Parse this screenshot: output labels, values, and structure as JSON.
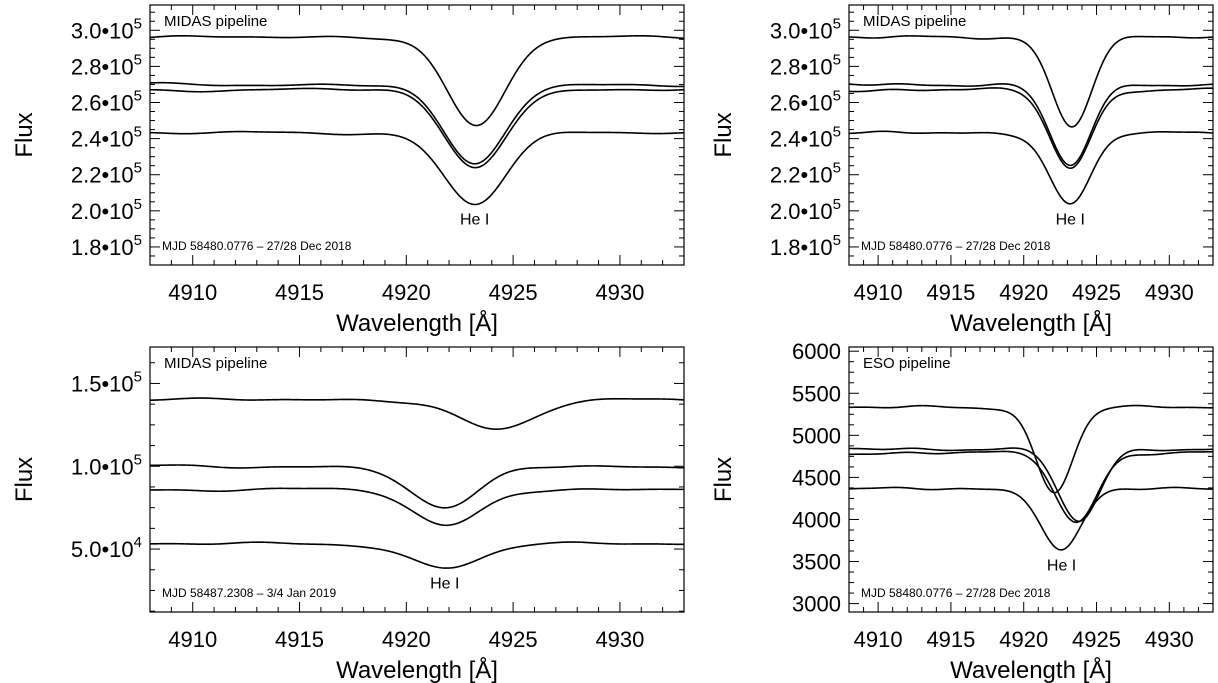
{
  "chart_data": [
    {
      "type": "line",
      "pipeline_label": "MIDAS pipeline",
      "date_label": "MJD 58480.0776 – 27/28 Dec 2018",
      "line_label": "He I",
      "line_label_x": 4923.2,
      "xlabel": "Wavelength [Å]",
      "ylabel": "Flux",
      "xlim": [
        4908,
        4933
      ],
      "ylim": [
        170000,
        314000
      ],
      "xticks": [
        4910,
        4915,
        4920,
        4925,
        4930
      ],
      "yticks": [
        {
          "value": 180000,
          "mant": "1.8",
          "exp": "5"
        },
        {
          "value": 200000,
          "mant": "2.0",
          "exp": "5"
        },
        {
          "value": 220000,
          "mant": "2.2",
          "exp": "5"
        },
        {
          "value": 240000,
          "mant": "2.4",
          "exp": "5"
        },
        {
          "value": 260000,
          "mant": "2.6",
          "exp": "5"
        },
        {
          "value": 280000,
          "mant": "2.8",
          "exp": "5"
        },
        {
          "value": 300000,
          "mant": "3.0",
          "exp": "5"
        }
      ],
      "series": [
        {
          "continuum": 296000,
          "depth": 49000,
          "center": 4923.3,
          "width": 1.9
        },
        {
          "continuum": 270000,
          "depth": 45000,
          "center": 4923.2,
          "width": 2.0
        },
        {
          "continuum": 267000,
          "depth": 43000,
          "center": 4923.2,
          "width": 2.0
        },
        {
          "continuum": 243000,
          "depth": 39000,
          "center": 4923.2,
          "width": 2.0
        }
      ]
    },
    {
      "type": "line",
      "pipeline_label": "MIDAS pipeline",
      "date_label": "MJD 58480.0776 – 27/28 Dec 2018",
      "line_label": "He I",
      "line_label_x": 4923.2,
      "xlabel": "Wavelength [Å]",
      "ylabel": "Flux",
      "xlim": [
        4908,
        4933
      ],
      "ylim": [
        170000,
        314000
      ],
      "xticks": [
        4910,
        4915,
        4920,
        4925,
        4930
      ],
      "yticks": [
        {
          "value": 180000,
          "mant": "1.8",
          "exp": "5"
        },
        {
          "value": 200000,
          "mant": "2.0",
          "exp": "5"
        },
        {
          "value": 220000,
          "mant": "2.2",
          "exp": "5"
        },
        {
          "value": 240000,
          "mant": "2.4",
          "exp": "5"
        },
        {
          "value": 260000,
          "mant": "2.6",
          "exp": "5"
        },
        {
          "value": 280000,
          "mant": "2.8",
          "exp": "5"
        },
        {
          "value": 300000,
          "mant": "3.0",
          "exp": "5"
        }
      ],
      "series": [
        {
          "continuum": 296000,
          "depth": 49000,
          "center": 4923.3,
          "width": 1.9
        },
        {
          "continuum": 270000,
          "depth": 45000,
          "center": 4923.2,
          "width": 2.0
        },
        {
          "continuum": 267000,
          "depth": 43000,
          "center": 4923.2,
          "width": 2.0
        },
        {
          "continuum": 243000,
          "depth": 39000,
          "center": 4923.2,
          "width": 2.0
        }
      ]
    },
    {
      "type": "line",
      "pipeline_label": "MIDAS pipeline",
      "date_label": "MJD 58487.2308 – 3/4 Jan 2019",
      "line_label": "He I",
      "line_label_x": 4921.8,
      "xlabel": "Wavelength [Å]",
      "ylabel": "Flux",
      "xlim": [
        4908,
        4933
      ],
      "ylim": [
        12000,
        172000
      ],
      "xticks": [
        4910,
        4915,
        4920,
        4925,
        4930
      ],
      "yticks": [
        {
          "value": 50000,
          "mant": "5.0",
          "exp": "4"
        },
        {
          "value": 100000,
          "mant": "1.0",
          "exp": "5"
        },
        {
          "value": 150000,
          "mant": "1.5",
          "exp": "5"
        }
      ],
      "series": [
        {
          "continuum": 140000,
          "depth": 18000,
          "center": 4924.3,
          "width": 2.4
        },
        {
          "continuum": 100000,
          "depth": 26000,
          "center": 4921.8,
          "width": 2.2
        },
        {
          "continuum": 86000,
          "depth": 22000,
          "center": 4921.8,
          "width": 2.2
        },
        {
          "continuum": 53000,
          "depth": 14000,
          "center": 4921.8,
          "width": 2.3
        }
      ]
    },
    {
      "type": "line",
      "pipeline_label": "ESO pipeline",
      "date_label": "MJD 58480.0776 – 27/28 Dec 2018",
      "line_label": "He I",
      "line_label_x": 4922.6,
      "xlabel": "Wavelength [Å]",
      "ylabel": "Flux",
      "xlim": [
        4908,
        4933
      ],
      "ylim": [
        2900,
        6050
      ],
      "xticks": [
        4910,
        4915,
        4920,
        4925,
        4930
      ],
      "yticks": [
        {
          "value": 3000,
          "label": "3000"
        },
        {
          "value": 3500,
          "label": "3500"
        },
        {
          "value": 4000,
          "label": "4000"
        },
        {
          "value": 4500,
          "label": "4500"
        },
        {
          "value": 5000,
          "label": "5000"
        },
        {
          "value": 5500,
          "label": "5500"
        },
        {
          "value": 6000,
          "label": "6000"
        }
      ],
      "series": [
        {
          "continuum": 5330,
          "depth": 1000,
          "center": 4922.1,
          "width": 1.8
        },
        {
          "continuum": 4840,
          "depth": 870,
          "center": 4923.8,
          "width": 2.0
        },
        {
          "continuum": 4790,
          "depth": 820,
          "center": 4923.6,
          "width": 2.0
        },
        {
          "continuum": 4360,
          "depth": 720,
          "center": 4922.6,
          "width": 1.9
        }
      ]
    }
  ]
}
